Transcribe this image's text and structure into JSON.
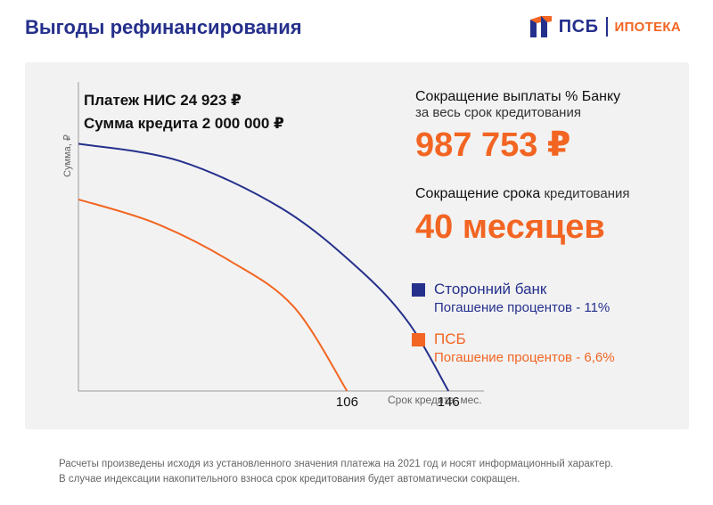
{
  "header": {
    "title": "Выгоды рефинансирования",
    "logo": {
      "name": "ПСБ",
      "sub": "ИПОТЕКА",
      "icon": "psb-logo-icon"
    }
  },
  "info": {
    "payment": "Платеж НИС 24 923 ₽",
    "loan_amount": "Сумма кредита 2 000 000 ₽"
  },
  "stats": {
    "interest_label_line1": "Сокращение выплаты % Банку",
    "interest_label_line2": "за весь срок кредитования",
    "interest_value": "987 753 ₽",
    "term_label_strong": "Сокращение срока",
    "term_label_light": " кредитования",
    "term_value": "40 месяцев"
  },
  "legend": [
    {
      "name": "Сторонний банк",
      "note": "Погашение процентов - 11%",
      "color": "#25308c"
    },
    {
      "name": "ПСБ",
      "note": "Погашение процентов - 6,6%",
      "color": "#f26522"
    }
  ],
  "chart_data": {
    "type": "line",
    "xlabel": "Срок кредита, мес.",
    "ylabel": "Сумма, ₽",
    "x_ticks": [
      106,
      146
    ],
    "series": [
      {
        "name": "Сторонний банк",
        "color": "#25308c",
        "points": [
          [
            0,
            2000000
          ],
          [
            40,
            1860000
          ],
          [
            80,
            1480000
          ],
          [
            110,
            1000000
          ],
          [
            130,
            560000
          ],
          [
            146,
            0
          ]
        ]
      },
      {
        "name": "ПСБ",
        "color": "#f26522",
        "points": [
          [
            0,
            1550000
          ],
          [
            30,
            1360000
          ],
          [
            60,
            1050000
          ],
          [
            85,
            680000
          ],
          [
            106,
            0
          ]
        ]
      }
    ],
    "xlim": [
      0,
      160
    ],
    "ylim": [
      0,
      2500000
    ],
    "grid": false
  },
  "footnote": {
    "line1": "Расчеты произведены исходя из установленного значения платежа на 2021 год и носят информационный характер.",
    "line2": "В случае индексации накопительного взноса срок кредитования будет автоматически сокращен."
  }
}
